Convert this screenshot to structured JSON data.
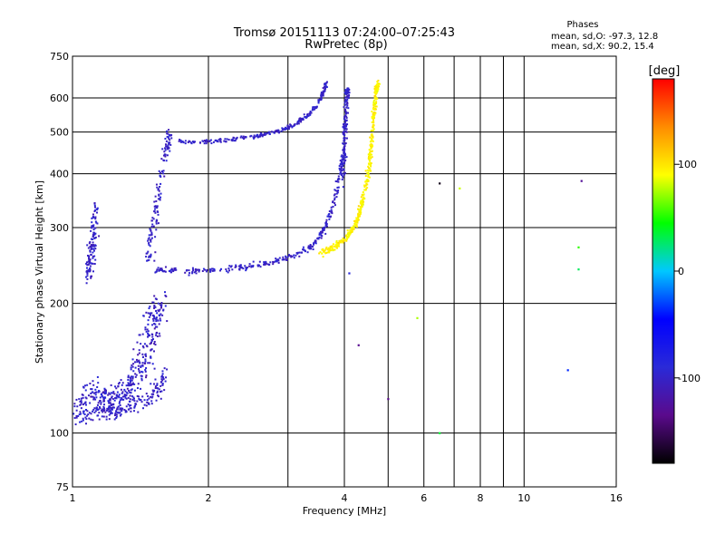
{
  "chart_data": {
    "type": "scatter",
    "title": "Tromsø 20151113 07:24:00–07:25:43",
    "subtitle": "RwPretec (8p)",
    "xlabel": "Frequency [MHz]",
    "ylabel": "Stationary phase Virtual Height [km]",
    "x_scale": "log",
    "y_scale": "log",
    "xlim": [
      1,
      16
    ],
    "ylim": [
      75,
      750
    ],
    "x_ticks": [
      1,
      2,
      4,
      6,
      8,
      10,
      16
    ],
    "y_ticks": [
      75,
      100,
      200,
      300,
      400,
      500,
      600,
      750
    ],
    "x_gridlines": [
      1,
      2,
      3,
      4,
      5,
      6,
      7,
      8,
      9,
      10,
      16
    ],
    "y_gridlines": [
      100,
      200,
      300,
      400,
      500,
      600,
      750
    ],
    "grid": true,
    "phases_box": {
      "title": "Phases",
      "line_o": "mean, sd,O: -97.3, 12.8",
      "line_x": "mean, sd,X:  90.2, 15.4"
    },
    "colorbar": {
      "label": "[deg]",
      "range": [
        -180,
        180
      ],
      "ticks": [
        100,
        0,
        -100
      ],
      "stops": [
        "#000000",
        "#5a0a8c",
        "#2a2ad8",
        "#0000ff",
        "#00c8ff",
        "#00ff00",
        "#ffff00",
        "#ff8c00",
        "#ff0000"
      ]
    },
    "traces": [
      {
        "id": "low-spread-O",
        "phase": -100,
        "phase_sd": 25,
        "count": 420,
        "points": [
          [
            1.02,
            112
          ],
          [
            1.05,
            118
          ],
          [
            1.1,
            125
          ],
          [
            1.15,
            118
          ],
          [
            1.2,
            120
          ],
          [
            1.25,
            118
          ],
          [
            1.3,
            122
          ],
          [
            1.35,
            130
          ],
          [
            1.4,
            140
          ],
          [
            1.45,
            150
          ],
          [
            1.5,
            168
          ],
          [
            1.52,
            185
          ],
          [
            1.55,
            200
          ]
        ],
        "scatter": 0.12
      },
      {
        "id": "low-spread-lower",
        "phase": -100,
        "phase_sd": 20,
        "count": 160,
        "points": [
          [
            1.05,
            108
          ],
          [
            1.15,
            112
          ],
          [
            1.25,
            112
          ],
          [
            1.35,
            115
          ],
          [
            1.45,
            120
          ],
          [
            1.55,
            125
          ],
          [
            1.6,
            140
          ]
        ],
        "scatter": 0.06
      },
      {
        "id": "F-lower-O",
        "phase": -100,
        "phase_sd": 18,
        "count": 330,
        "points": [
          [
            1.52,
            240
          ],
          [
            1.7,
            238
          ],
          [
            2.0,
            238
          ],
          [
            2.4,
            243
          ],
          [
            2.8,
            250
          ],
          [
            3.1,
            258
          ],
          [
            3.4,
            272
          ],
          [
            3.6,
            295
          ],
          [
            3.75,
            330
          ],
          [
            3.85,
            370
          ],
          [
            3.95,
            420
          ],
          [
            4.0,
            500
          ],
          [
            4.05,
            600
          ]
        ],
        "scatter": 0.025
      },
      {
        "id": "F-upper-O",
        "phase": -100,
        "phase_sd": 18,
        "count": 240,
        "points": [
          [
            1.72,
            475
          ],
          [
            2.0,
            475
          ],
          [
            2.3,
            482
          ],
          [
            2.6,
            490
          ],
          [
            2.9,
            505
          ],
          [
            3.1,
            520
          ],
          [
            3.3,
            545
          ],
          [
            3.5,
            580
          ],
          [
            3.6,
            620
          ],
          [
            3.65,
            650
          ]
        ],
        "scatter": 0.018
      },
      {
        "id": "F-X",
        "phase": 95,
        "phase_sd": 15,
        "count": 400,
        "points": [
          [
            3.55,
            262
          ],
          [
            3.8,
            270
          ],
          [
            4.0,
            282
          ],
          [
            4.2,
            300
          ],
          [
            4.35,
            330
          ],
          [
            4.45,
            370
          ],
          [
            4.55,
            420
          ],
          [
            4.6,
            480
          ],
          [
            4.65,
            550
          ],
          [
            4.7,
            620
          ],
          [
            4.75,
            650
          ]
        ],
        "scatter": 0.025
      },
      {
        "id": "spread-vertical-1",
        "phase": -100,
        "phase_sd": 20,
        "count": 120,
        "points": [
          [
            1.08,
            230
          ],
          [
            1.1,
            260
          ],
          [
            1.12,
            300
          ],
          [
            1.13,
            340
          ]
        ],
        "scatter": 0.05
      },
      {
        "id": "spread-vertical-2",
        "phase": -100,
        "phase_sd": 20,
        "count": 130,
        "points": [
          [
            1.48,
            250
          ],
          [
            1.5,
            300
          ],
          [
            1.55,
            350
          ],
          [
            1.6,
            450
          ],
          [
            1.65,
            500
          ]
        ],
        "scatter": 0.05
      },
      {
        "id": "spread-vertical-4MHz",
        "phase": -100,
        "phase_sd": 15,
        "count": 100,
        "points": [
          [
            3.95,
            380
          ],
          [
            4.0,
            450
          ],
          [
            4.02,
            520
          ],
          [
            4.05,
            600
          ],
          [
            4.07,
            640
          ]
        ],
        "scatter": 0.03
      },
      {
        "id": "scattered-noise",
        "phase": 0,
        "phase_sd": 90,
        "count": 40,
        "points": [
          [
            5.0,
            120
          ],
          [
            6.5,
            100
          ],
          [
            6.5,
            380
          ],
          [
            7.2,
            370
          ],
          [
            12.5,
            140
          ],
          [
            13.2,
            270
          ],
          [
            13.2,
            240
          ],
          [
            13.4,
            385
          ],
          [
            5.8,
            185
          ],
          [
            4.3,
            160
          ],
          [
            4.1,
            235
          ]
        ],
        "scatter": 0.03
      }
    ]
  }
}
